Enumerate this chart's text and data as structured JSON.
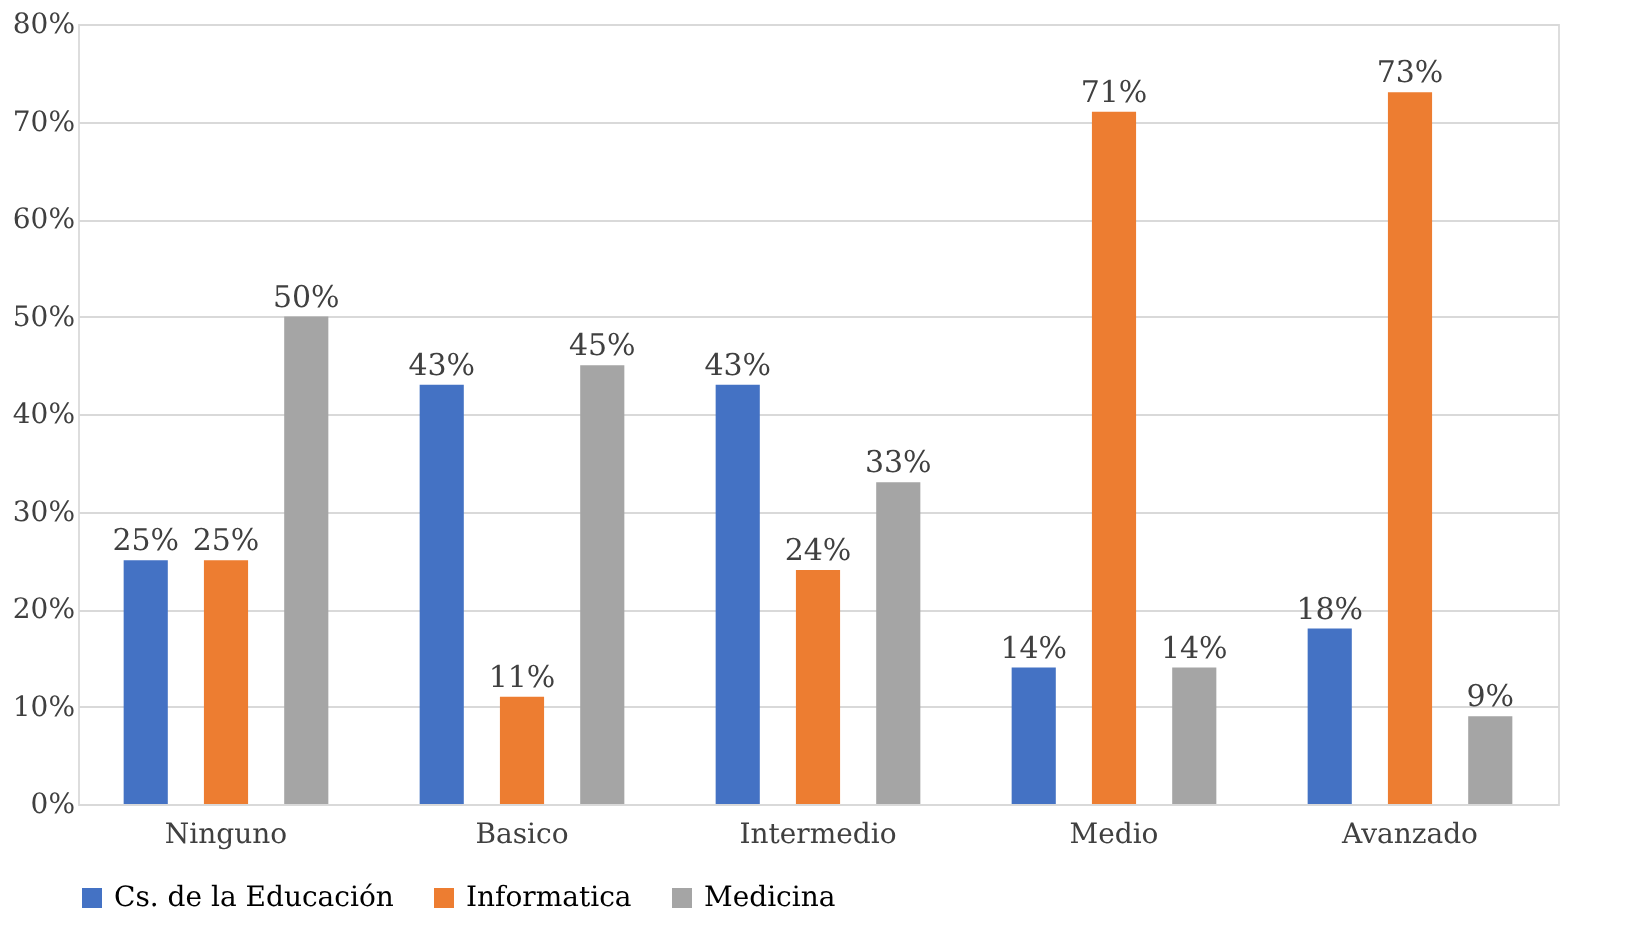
{
  "chart_data": {
    "type": "bar",
    "categories": [
      "Ninguno",
      "Basico",
      "Intermedio",
      "Medio",
      "Avanzado"
    ],
    "series": [
      {
        "name": "Cs. de la Educación",
        "color": "#4472c4",
        "values": [
          25,
          43,
          43,
          14,
          18
        ],
        "value_labels": [
          "25%",
          "43%",
          "43%",
          "14%",
          "18%"
        ]
      },
      {
        "name": "Informatica",
        "color": "#ed7d31",
        "values": [
          25,
          11,
          24,
          71,
          73
        ],
        "value_labels": [
          "25%",
          "11%",
          "24%",
          "71%",
          "73%"
        ]
      },
      {
        "name": "Medicina",
        "color": "#a5a5a5",
        "values": [
          50,
          45,
          33,
          14,
          9
        ],
        "value_labels": [
          "50%",
          "45%",
          "33%",
          "14%",
          "9%"
        ]
      }
    ],
    "ylim": [
      0,
      80
    ],
    "yticks": [
      {
        "value": 0,
        "label": "0%"
      },
      {
        "value": 10,
        "label": "10%"
      },
      {
        "value": 20,
        "label": "20%"
      },
      {
        "value": 30,
        "label": "30%"
      },
      {
        "value": 40,
        "label": "40%"
      },
      {
        "value": 50,
        "label": "50%"
      },
      {
        "value": 60,
        "label": "60%"
      },
      {
        "value": 70,
        "label": "70%"
      },
      {
        "value": 80,
        "label": "80%"
      }
    ],
    "grid": "y",
    "legend": "bottom"
  }
}
